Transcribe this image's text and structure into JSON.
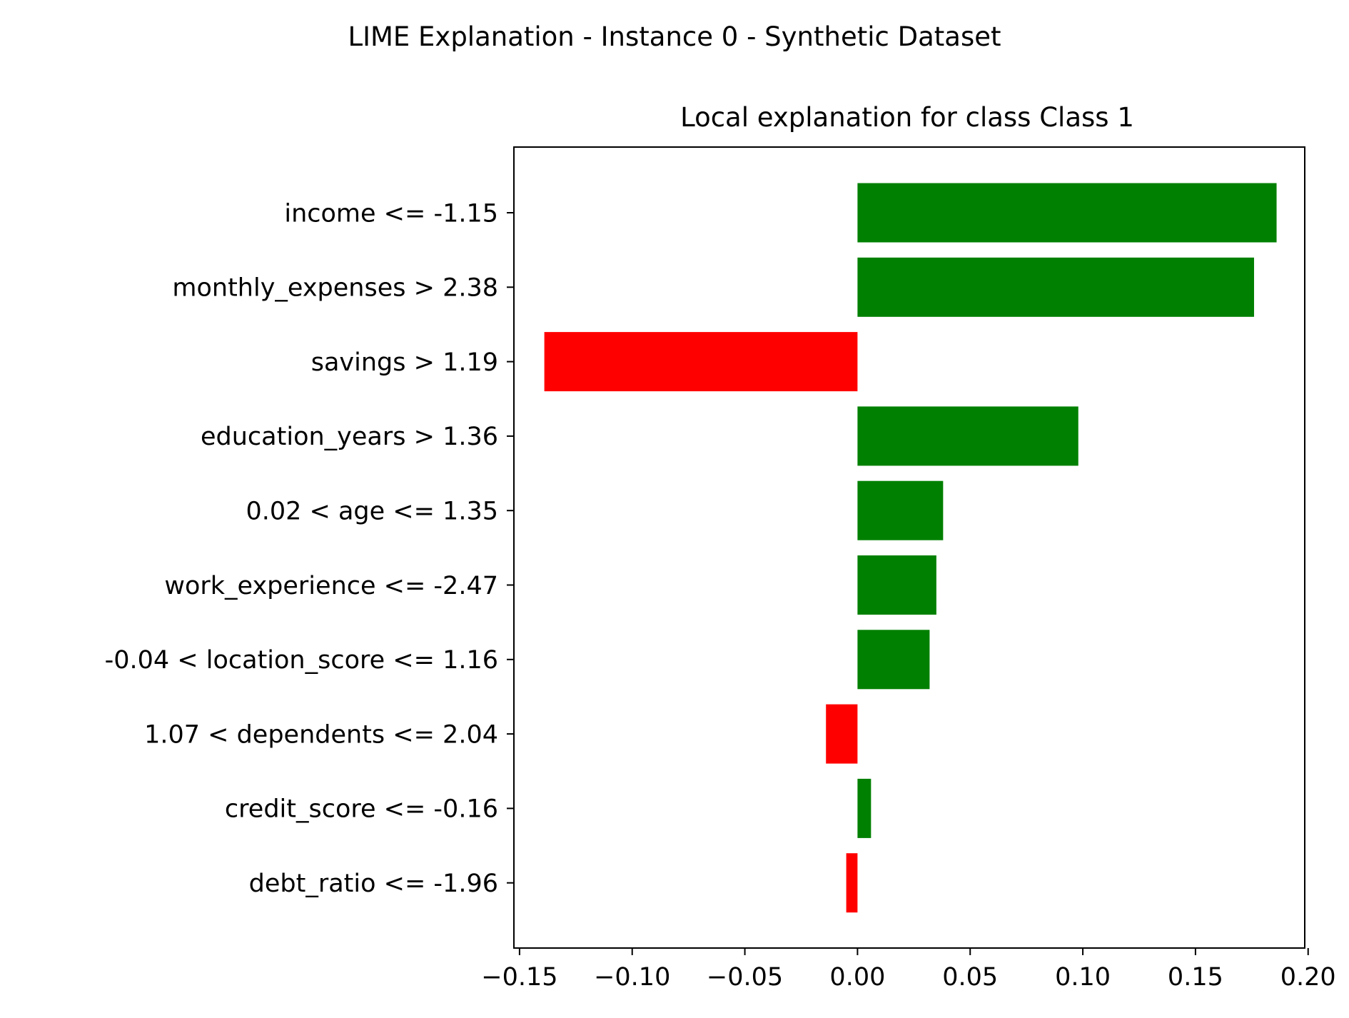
{
  "chart_data": {
    "type": "bar",
    "orientation": "horizontal",
    "suptitle": "LIME Explanation - Instance 0 - Synthetic Dataset",
    "title": "Local explanation for class Class 1",
    "xlabel": "",
    "ylabel": "",
    "xlim": [
      -0.1525,
      0.1985
    ],
    "xticks": [
      -0.15,
      -0.1,
      -0.05,
      0.0,
      0.05,
      0.1,
      0.15,
      0.2
    ],
    "xtick_labels": [
      "−0.15",
      "−0.10",
      "−0.05",
      "0.00",
      "0.05",
      "0.10",
      "0.15",
      "0.20"
    ],
    "grid": false,
    "legend": "none",
    "positive_color": "#008000",
    "negative_color": "#ff0000",
    "bars": [
      {
        "label": "income <= -1.15",
        "value": 0.186
      },
      {
        "label": "monthly_expenses > 2.38",
        "value": 0.176
      },
      {
        "label": "savings > 1.19",
        "value": -0.139
      },
      {
        "label": "education_years > 1.36",
        "value": 0.098
      },
      {
        "label": "0.02 < age <= 1.35",
        "value": 0.038
      },
      {
        "label": "work_experience <= -2.47",
        "value": 0.035
      },
      {
        "label": "-0.04 < location_score <= 1.16",
        "value": 0.032
      },
      {
        "label": "1.07 < dependents <= 2.04",
        "value": -0.014
      },
      {
        "label": "credit_score <= -0.16",
        "value": 0.006
      },
      {
        "label": "debt_ratio <= -1.96",
        "value": -0.005
      }
    ]
  }
}
